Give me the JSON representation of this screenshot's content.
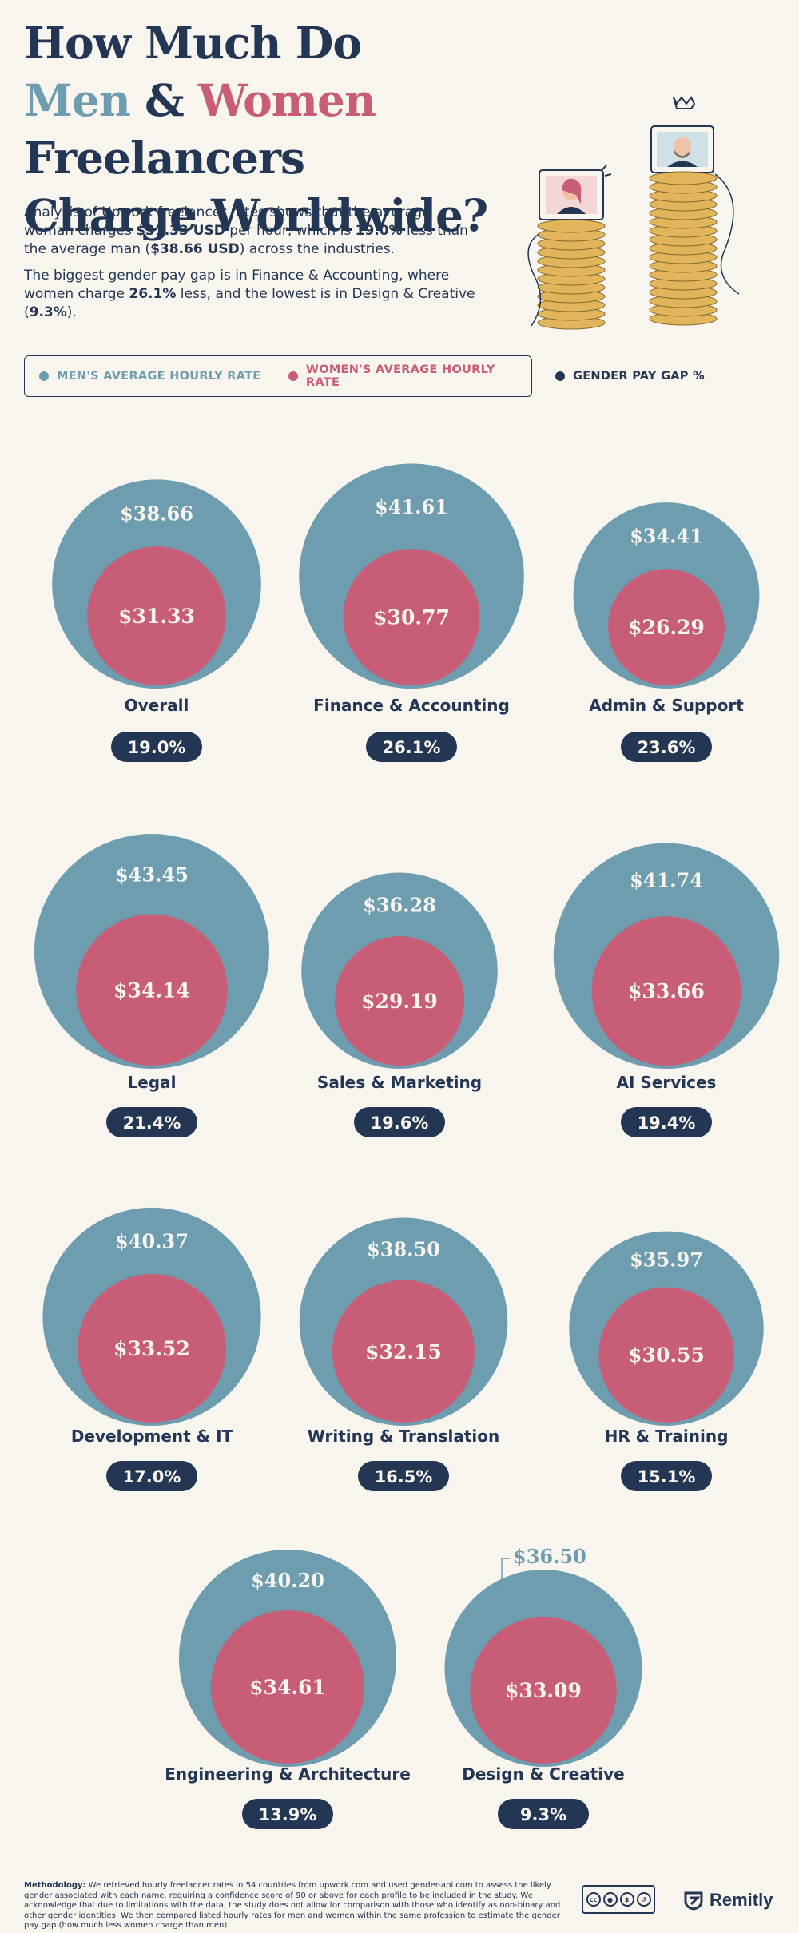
{
  "title": {
    "line1": "How Much Do",
    "men": "Men",
    "amp": "&",
    "women": "Women",
    "freelancers": "Freelancers",
    "line3": "Charge Worldwide?"
  },
  "intro": {
    "p1a": "Analysis of Upwork freelancer rates shows that the average woman charges ",
    "p1_woman_rate": "$31.33 USD",
    "p1b": " per hour, which is ",
    "p1_gap": "19.0%",
    "p1c": " less than the average man (",
    "p1_man_rate": "$38.66 USD",
    "p1d": ") across the industries.",
    "p2a": "The biggest gender pay gap is in Finance & Accounting, where women charge ",
    "p2_gap": "26.1%",
    "p2b": " less, and the lowest is in Design & Creative (",
    "p2_low": "9.3%",
    "p2c": ")."
  },
  "legend": {
    "men": "MEN'S AVERAGE HOURLY RATE",
    "women": "WOMEN'S AVERAGE HOURLY RATE",
    "gap": "GENDER PAY GAP %"
  },
  "colors": {
    "men": "#6d9daf",
    "women": "#c85d78",
    "navy": "#233653",
    "background": "#f8f4ee"
  },
  "chart_data": {
    "type": "nested-circles",
    "title": "How Much Do Men & Women Freelancers Charge Worldwide?",
    "units": "USD per hour",
    "series": [
      {
        "name": "MEN'S AVERAGE HOURLY RATE",
        "color": "#6d9daf"
      },
      {
        "name": "WOMEN'S AVERAGE HOURLY RATE",
        "color": "#c85d78"
      },
      {
        "name": "GENDER PAY GAP %",
        "color": "#233653"
      }
    ],
    "categories": [
      {
        "name": "Overall",
        "men": 38.66,
        "women": 31.33,
        "gap": 19.0,
        "men_label": "$38.66",
        "women_label": "$31.33",
        "gap_label": "19.0%"
      },
      {
        "name": "Finance & Accounting",
        "men": 41.61,
        "women": 30.77,
        "gap": 26.1,
        "men_label": "$41.61",
        "women_label": "$30.77",
        "gap_label": "26.1%"
      },
      {
        "name": "Admin & Support",
        "men": 34.41,
        "women": 26.29,
        "gap": 23.6,
        "men_label": "$34.41",
        "women_label": "$26.29",
        "gap_label": "23.6%"
      },
      {
        "name": "Legal",
        "men": 43.45,
        "women": 34.14,
        "gap": 21.4,
        "men_label": "$43.45",
        "women_label": "$34.14",
        "gap_label": "21.4%"
      },
      {
        "name": "Sales & Marketing",
        "men": 36.28,
        "women": 29.19,
        "gap": 19.6,
        "men_label": "$36.28",
        "women_label": "$29.19",
        "gap_label": "19.6%"
      },
      {
        "name": "AI Services",
        "men": 41.74,
        "women": 33.66,
        "gap": 19.4,
        "men_label": "$41.74",
        "women_label": "$33.66",
        "gap_label": "19.4%"
      },
      {
        "name": "Development & IT",
        "men": 40.37,
        "women": 33.52,
        "gap": 17.0,
        "men_label": "$40.37",
        "women_label": "$33.52",
        "gap_label": "17.0%"
      },
      {
        "name": "Writing & Translation",
        "men": 38.5,
        "women": 32.15,
        "gap": 16.5,
        "men_label": "$38.50",
        "women_label": "$32.15",
        "gap_label": "16.5%"
      },
      {
        "name": "HR & Training",
        "men": 35.97,
        "women": 30.55,
        "gap": 15.1,
        "men_label": "$35.97",
        "women_label": "$30.55",
        "gap_label": "15.1%"
      },
      {
        "name": "Engineering & Architecture",
        "men": 40.2,
        "women": 34.61,
        "gap": 13.9,
        "men_label": "$40.20",
        "women_label": "$34.61",
        "gap_label": "13.9%"
      },
      {
        "name": "Design & Creative",
        "men": 36.5,
        "women": 33.09,
        "gap": 9.3,
        "men_label": "$36.50",
        "women_label": "$33.09",
        "gap_label": "9.3%"
      }
    ]
  },
  "footer": {
    "methodology_label": "Methodology:",
    "methodology_text": " We retrieved hourly freelancer rates in 54 countries from upwork.com and used gender-api.com to assess the likely gender associated with each name, requiring a confidence score of 90 or above for each profile to be included in the study. We acknowledge that due to limitations with the data, the study does not allow for comparison with those who identify as non-binary and other gender identities. We then compared listed hourly rates for men and women within the same profession to estimate the gender pay gap (how much less women charge than men).",
    "license": "BY NC SA",
    "brand": "Remitly"
  }
}
